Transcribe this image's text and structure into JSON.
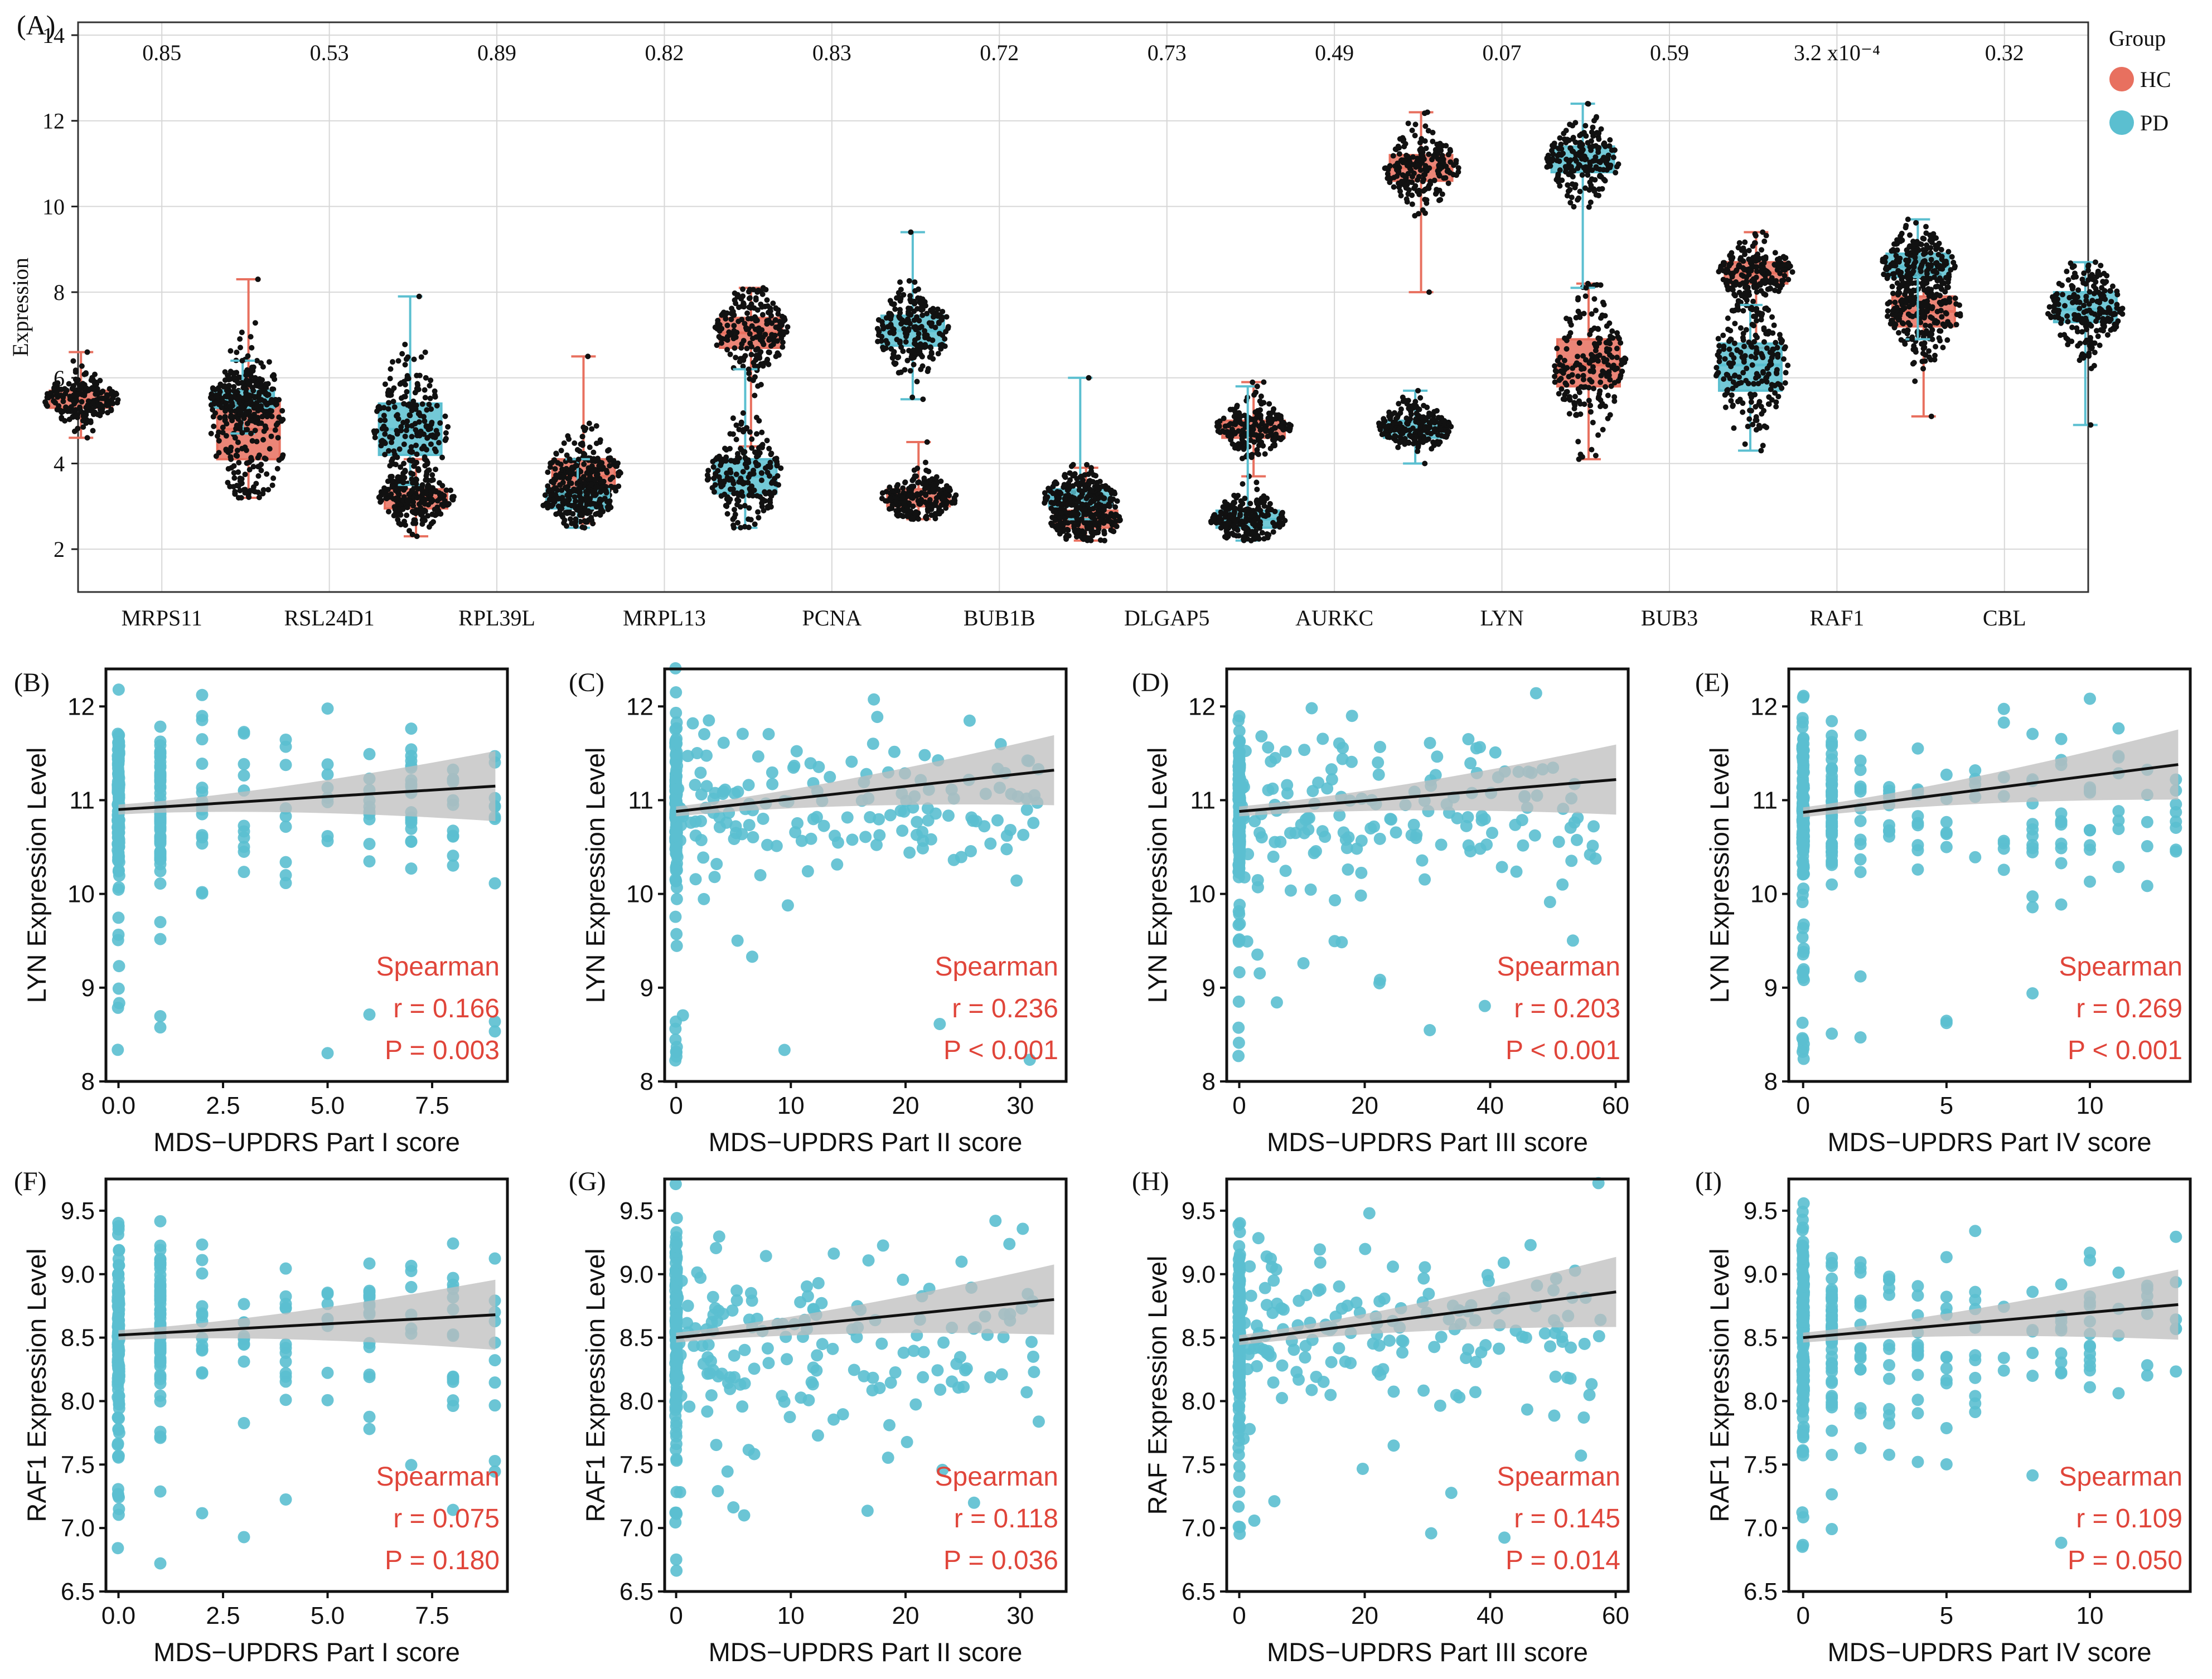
{
  "chart_data": [
    {
      "panel": "(A)",
      "type": "box",
      "ylabel": "Expression",
      "ylim": [
        1,
        14.3
      ],
      "yticks": [
        2,
        4,
        6,
        8,
        10,
        12,
        14
      ],
      "grid": true,
      "legend": {
        "title": "Group",
        "position": "right",
        "entries": [
          {
            "name": "HC",
            "color": "#e8705f"
          },
          {
            "name": "PD",
            "color": "#5bbfd0"
          }
        ]
      },
      "categories": [
        "MRPS11",
        "RSL24D1",
        "RPL39L",
        "MRPL13",
        "PCNA",
        "BUB1B",
        "DLGAP5",
        "AURKC",
        "LYN",
        "BUB3",
        "RAF1",
        "CBL"
      ],
      "pvalues": [
        "0.85",
        "0.53",
        "0.89",
        "0.82",
        "0.83",
        "0.72",
        "0.73",
        "0.49",
        "0.07",
        "0.59",
        "3.2 x10⁻⁴",
        "0.32"
      ],
      "series": [
        {
          "name": "HC",
          "boxes": [
            {
              "min": 4.6,
              "q1": 5.3,
              "median": 5.5,
              "q3": 5.7,
              "max": 6.6
            },
            {
              "min": 3.2,
              "q1": 4.1,
              "median": 4.8,
              "q3": 5.5,
              "max": 8.3
            },
            {
              "min": 2.3,
              "q1": 2.95,
              "median": 3.2,
              "q3": 3.4,
              "max": 4.1
            },
            {
              "min": 2.6,
              "q1": 3.4,
              "median": 3.7,
              "q3": 4.1,
              "max": 6.5
            },
            {
              "min": 4.4,
              "q1": 6.7,
              "median": 7.05,
              "q3": 7.4,
              "max": 8.1
            },
            {
              "min": 2.7,
              "q1": 3.0,
              "median": 3.2,
              "q3": 3.4,
              "max": 4.5
            },
            {
              "min": 2.2,
              "q1": 2.5,
              "median": 2.7,
              "q3": 2.9,
              "max": 3.9
            },
            {
              "min": 3.7,
              "q1": 4.6,
              "median": 4.85,
              "q3": 5.0,
              "max": 5.9
            },
            {
              "min": 8.0,
              "q1": 10.6,
              "median": 10.9,
              "q3": 11.2,
              "max": 12.2
            },
            {
              "min": 4.1,
              "q1": 5.8,
              "median": 6.3,
              "q3": 6.9,
              "max": 8.2
            },
            {
              "min": 6.7,
              "q1": 8.2,
              "median": 8.45,
              "q3": 8.7,
              "max": 9.4
            },
            {
              "min": 5.1,
              "q1": 7.2,
              "median": 7.55,
              "q3": 7.9,
              "max": 8.8
            }
          ]
        },
        {
          "name": "PD",
          "boxes": [
            {
              "min": 4.7,
              "q1": 5.3,
              "median": 5.5,
              "q3": 5.7,
              "max": 6.4
            },
            {
              "min": 3.5,
              "q1": 4.2,
              "median": 4.8,
              "q3": 5.4,
              "max": 7.9
            },
            {
              "min": 2.5,
              "q1": 2.95,
              "median": 3.2,
              "q3": 3.4,
              "max": 4.1
            },
            {
              "min": 2.5,
              "q1": 3.3,
              "median": 3.7,
              "q3": 4.1,
              "max": 6.2
            },
            {
              "min": 5.5,
              "q1": 6.75,
              "median": 7.1,
              "q3": 7.45,
              "max": 9.4
            },
            {
              "min": 2.7,
              "q1": 3.0,
              "median": 3.2,
              "q3": 3.4,
              "max": 6.0
            },
            {
              "min": 2.2,
              "q1": 2.5,
              "median": 2.7,
              "q3": 2.9,
              "max": 5.8
            },
            {
              "min": 4.0,
              "q1": 4.6,
              "median": 4.85,
              "q3": 5.0,
              "max": 5.7
            },
            {
              "min": 8.1,
              "q1": 10.8,
              "median": 11.1,
              "q3": 11.4,
              "max": 12.4
            },
            {
              "min": 4.3,
              "q1": 5.7,
              "median": 6.3,
              "q3": 6.8,
              "max": 7.7
            },
            {
              "min": 6.9,
              "q1": 8.35,
              "median": 8.6,
              "q3": 8.9,
              "max": 9.7
            },
            {
              "min": 4.9,
              "q1": 7.3,
              "median": 7.6,
              "q3": 8.0,
              "max": 8.7
            }
          ]
        }
      ]
    },
    {
      "panel": "(B)",
      "type": "scatter",
      "xlabel": "MDS−UPDRS Part I score",
      "ylabel": "LYN Expression Level",
      "xlim": [
        -0.3,
        9.3
      ],
      "ylim": [
        8,
        12.4
      ],
      "xticks": [
        0,
        2.5,
        5,
        7.5
      ],
      "xtick_labels": [
        "0.0",
        "2.5",
        "5.0",
        "7.5"
      ],
      "yticks": [
        8,
        9,
        10,
        11,
        12
      ],
      "ytick_labels": [
        "8",
        "9",
        "10",
        "11",
        "12"
      ],
      "fit_start": 10.9,
      "fit_end": 11.15,
      "stat_method": "Spearman",
      "r": "r = 0.166",
      "p": "P = 0.003"
    },
    {
      "panel": "(C)",
      "type": "scatter",
      "xlabel": "MDS−UPDRS Part II score",
      "ylabel": "LYN Expression Level",
      "xlim": [
        -1,
        34
      ],
      "ylim": [
        8,
        12.4
      ],
      "xticks": [
        0,
        10,
        20,
        30
      ],
      "xtick_labels": [
        "0",
        "10",
        "20",
        "30"
      ],
      "yticks": [
        8,
        9,
        10,
        11,
        12
      ],
      "ytick_labels": [
        "8",
        "9",
        "10",
        "11",
        "12"
      ],
      "fit_start": 10.88,
      "fit_end": 11.32,
      "stat_method": "Spearman",
      "r": "r = 0.236",
      "p": "P < 0.001"
    },
    {
      "panel": "(D)",
      "type": "scatter",
      "xlabel": "MDS−UPDRS Part III score",
      "ylabel": "LYN Expression Level",
      "xlim": [
        -2,
        62
      ],
      "ylim": [
        8,
        12.4
      ],
      "xticks": [
        0,
        20,
        40,
        60
      ],
      "xtick_labels": [
        "0",
        "20",
        "40",
        "60"
      ],
      "yticks": [
        8,
        9,
        10,
        11,
        12
      ],
      "ytick_labels": [
        "8",
        "9",
        "10",
        "11",
        "12"
      ],
      "fit_start": 10.88,
      "fit_end": 11.22,
      "stat_method": "Spearman",
      "r": "r = 0.203",
      "p": "P < 0.001"
    },
    {
      "panel": "(E)",
      "type": "scatter",
      "xlabel": "MDS−UPDRS Part IV score",
      "ylabel": "LYN Expression Level",
      "xlim": [
        -0.5,
        13.5
      ],
      "ylim": [
        8,
        12.4
      ],
      "xticks": [
        0,
        5,
        10
      ],
      "xtick_labels": [
        "0",
        "5",
        "10"
      ],
      "yticks": [
        8,
        9,
        10,
        11,
        12
      ],
      "ytick_labels": [
        "8",
        "9",
        "10",
        "11",
        "12"
      ],
      "fit_start": 10.87,
      "fit_end": 11.38,
      "stat_method": "Spearman",
      "r": "r = 0.269",
      "p": "P < 0.001"
    },
    {
      "panel": "(F)",
      "type": "scatter",
      "xlabel": "MDS−UPDRS Part I score",
      "ylabel": "RAF1 Expression Level",
      "xlim": [
        -0.3,
        9.3
      ],
      "ylim": [
        6.5,
        9.75
      ],
      "xticks": [
        0,
        2.5,
        5,
        7.5
      ],
      "xtick_labels": [
        "0.0",
        "2.5",
        "5.0",
        "7.5"
      ],
      "yticks": [
        6.5,
        7.0,
        7.5,
        8.0,
        8.5,
        9.0,
        9.5
      ],
      "ytick_labels": [
        "6.5",
        "7.0",
        "7.5",
        "8.0",
        "8.5",
        "9.0",
        "9.5"
      ],
      "fit_start": 8.52,
      "fit_end": 8.68,
      "stat_method": "Spearman",
      "r": "r = 0.075",
      "p": "P = 0.180"
    },
    {
      "panel": "(G)",
      "type": "scatter",
      "xlabel": "MDS−UPDRS Part II score",
      "ylabel": "RAF1 Expression Level",
      "xlim": [
        -1,
        34
      ],
      "ylim": [
        6.5,
        9.75
      ],
      "xticks": [
        0,
        10,
        20,
        30
      ],
      "xtick_labels": [
        "0",
        "10",
        "20",
        "30"
      ],
      "yticks": [
        6.5,
        7.0,
        7.5,
        8.0,
        8.5,
        9.0,
        9.5
      ],
      "ytick_labels": [
        "6.5",
        "7.0",
        "7.5",
        "8.0",
        "8.5",
        "9.0",
        "9.5"
      ],
      "fit_start": 8.5,
      "fit_end": 8.8,
      "stat_method": "Spearman",
      "r": "r = 0.118",
      "p": "P = 0.036"
    },
    {
      "panel": "(H)",
      "type": "scatter",
      "xlabel": "MDS−UPDRS Part III score",
      "ylabel": "RAF Expression Level",
      "xlim": [
        -2,
        62
      ],
      "ylim": [
        6.5,
        9.75
      ],
      "xticks": [
        0,
        20,
        40,
        60
      ],
      "xtick_labels": [
        "0",
        "20",
        "40",
        "60"
      ],
      "yticks": [
        6.5,
        7.0,
        7.5,
        8.0,
        8.5,
        9.0,
        9.5
      ],
      "ytick_labels": [
        "6.5",
        "7.0",
        "7.5",
        "8.0",
        "8.5",
        "9.0",
        "9.5"
      ],
      "fit_start": 8.48,
      "fit_end": 8.86,
      "stat_method": "Spearman",
      "r": "r = 0.145",
      "p": "P = 0.014"
    },
    {
      "panel": "(I)",
      "type": "scatter",
      "xlabel": "MDS−UPDRS Part IV score",
      "ylabel": "RAF1 Expression Level",
      "xlim": [
        -0.5,
        13.5
      ],
      "ylim": [
        6.5,
        9.75
      ],
      "xticks": [
        0,
        5,
        10
      ],
      "xtick_labels": [
        "0",
        "5",
        "10"
      ],
      "yticks": [
        6.5,
        7.0,
        7.5,
        8.0,
        8.5,
        9.0,
        9.5
      ],
      "ytick_labels": [
        "6.5",
        "7.0",
        "7.5",
        "8.0",
        "8.5",
        "9.0",
        "9.5"
      ],
      "fit_start": 8.5,
      "fit_end": 8.76,
      "stat_method": "Spearman",
      "r": "r = 0.109",
      "p": "P = 0.050"
    }
  ],
  "colors": {
    "hc": "#e8705f",
    "pd": "#5bbfd0",
    "point": "#111111",
    "scatter_point": "#5bbfd0",
    "stat_text": "#e0453a",
    "band": "#bdbdbd"
  }
}
